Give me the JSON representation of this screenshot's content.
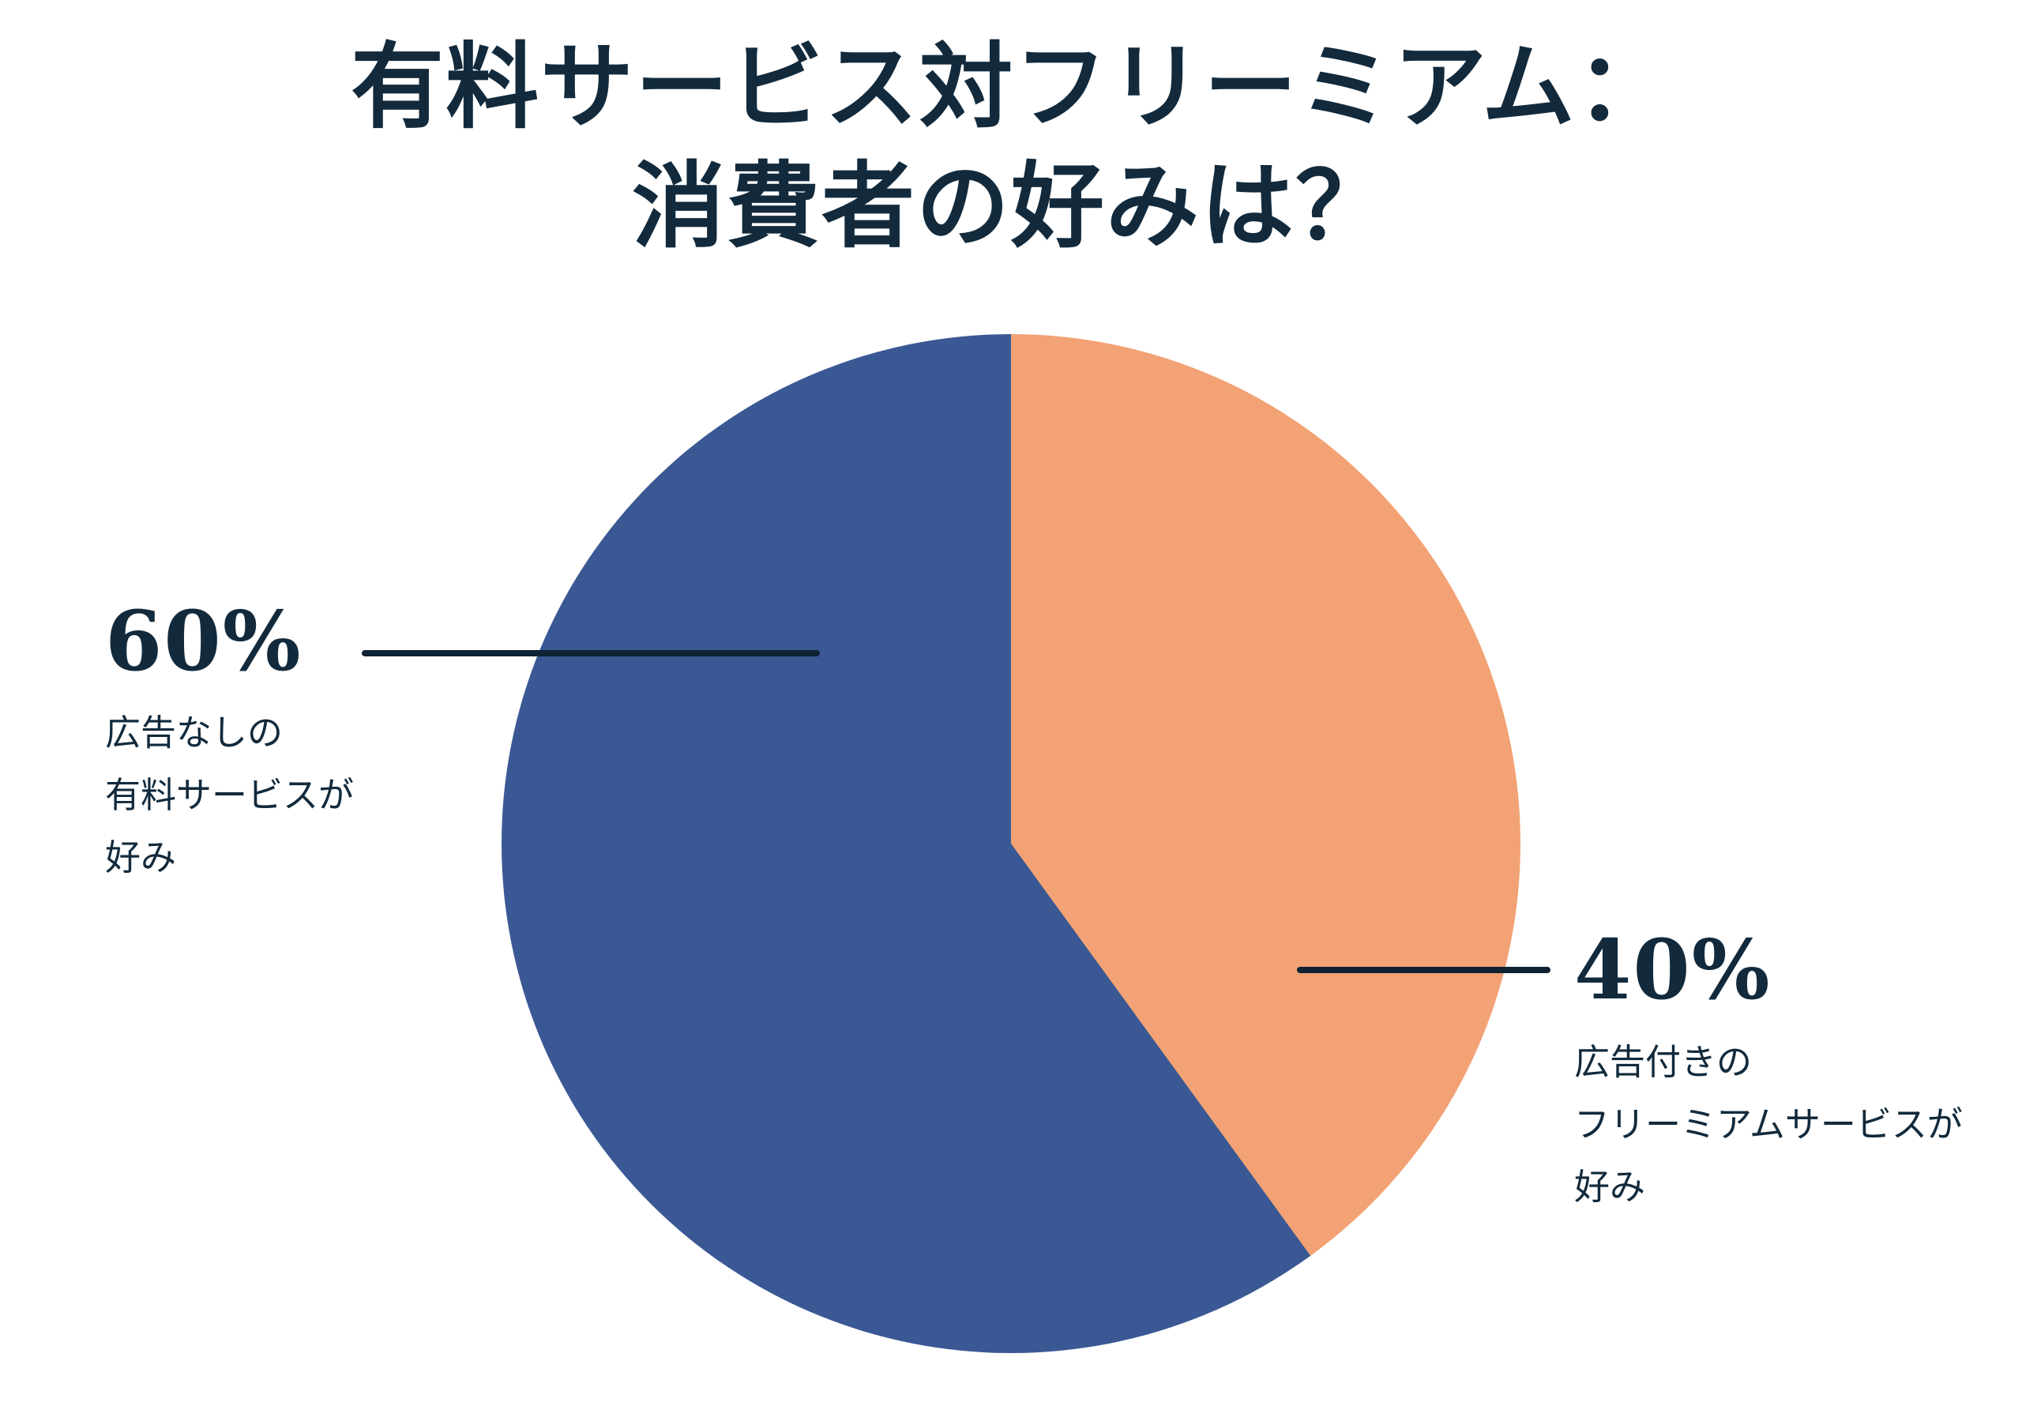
{
  "title": {
    "line1": "有料サービス対フリーミアム：",
    "line2": "消費者の好みは？"
  },
  "chart_data": {
    "type": "pie",
    "title": "有料サービス対フリーミアム：消費者の好みは？",
    "start_angle_deg": 0,
    "direction": "clockwise from 12 o'clock, last-listed slice drawn first (40% orange on right, 60% blue wrapping left)",
    "legend_position": "side-annotations with leader lines",
    "slices": [
      {
        "label": "広告なしの有料サービスが好み",
        "value": 60,
        "display": "60%",
        "color": "#3a5894"
      },
      {
        "label": "広告付きのフリーミアムサービスが好み",
        "value": 40,
        "display": "40%",
        "color": "#f2a274"
      }
    ]
  },
  "annotations": {
    "left": {
      "pct": "60%",
      "lines": [
        "広告なしの",
        "有料サービスが",
        "好み"
      ]
    },
    "right": {
      "pct": "40%",
      "lines": [
        "広告付きの",
        "フリーミアムサービスが",
        "好み"
      ]
    }
  },
  "colors": {
    "background": "#ffffff",
    "ink": "#122a3c",
    "leader": "#0e2233",
    "blue": "#3a5894",
    "orange": "#f2a274"
  }
}
